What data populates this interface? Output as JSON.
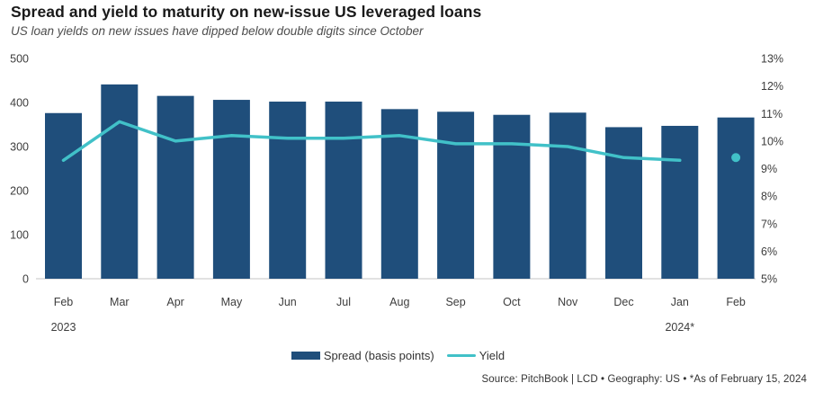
{
  "header": {
    "title": "Spread and yield to maturity on new-issue US leveraged loans",
    "subtitle": "US loan yields on new issues have dipped below double digits since October"
  },
  "chart_data": {
    "type": "combo-bar-line",
    "categories": [
      "Feb",
      "Mar",
      "Apr",
      "May",
      "Jun",
      "Jul",
      "Aug",
      "Sep",
      "Oct",
      "Nov",
      "Dec",
      "Jan",
      "Feb"
    ],
    "year_labels": [
      {
        "index": 0,
        "label": "2023"
      },
      {
        "index": 11,
        "label": "2024*"
      }
    ],
    "series": [
      {
        "name": "Spread (basis points)",
        "type": "bar",
        "axis": "left",
        "color": "#1f4e7b",
        "values": [
          376,
          441,
          415,
          406,
          402,
          402,
          385,
          379,
          372,
          377,
          344,
          347,
          366
        ]
      },
      {
        "name": "Yield",
        "type": "line",
        "axis": "right",
        "color": "#41c1c8",
        "values": [
          9.3,
          10.7,
          10.0,
          10.2,
          10.1,
          10.1,
          10.2,
          9.9,
          9.9,
          9.8,
          9.4,
          9.3,
          9.4
        ],
        "line_end_index": 11,
        "point_only_index": 12
      }
    ],
    "left_axis": {
      "min": 0,
      "max": 500,
      "ticks": [
        0,
        100,
        200,
        300,
        400,
        500
      ]
    },
    "right_axis": {
      "min": 5,
      "max": 13,
      "ticks": [
        "5%",
        "6%",
        "7%",
        "8%",
        "9%",
        "10%",
        "11%",
        "12%",
        "13%"
      ]
    },
    "grid": "off",
    "legend_position": "bottom"
  },
  "footer": {
    "source_line": "Source: PitchBook | LCD • Geography: US • *As of February 15, 2024"
  }
}
